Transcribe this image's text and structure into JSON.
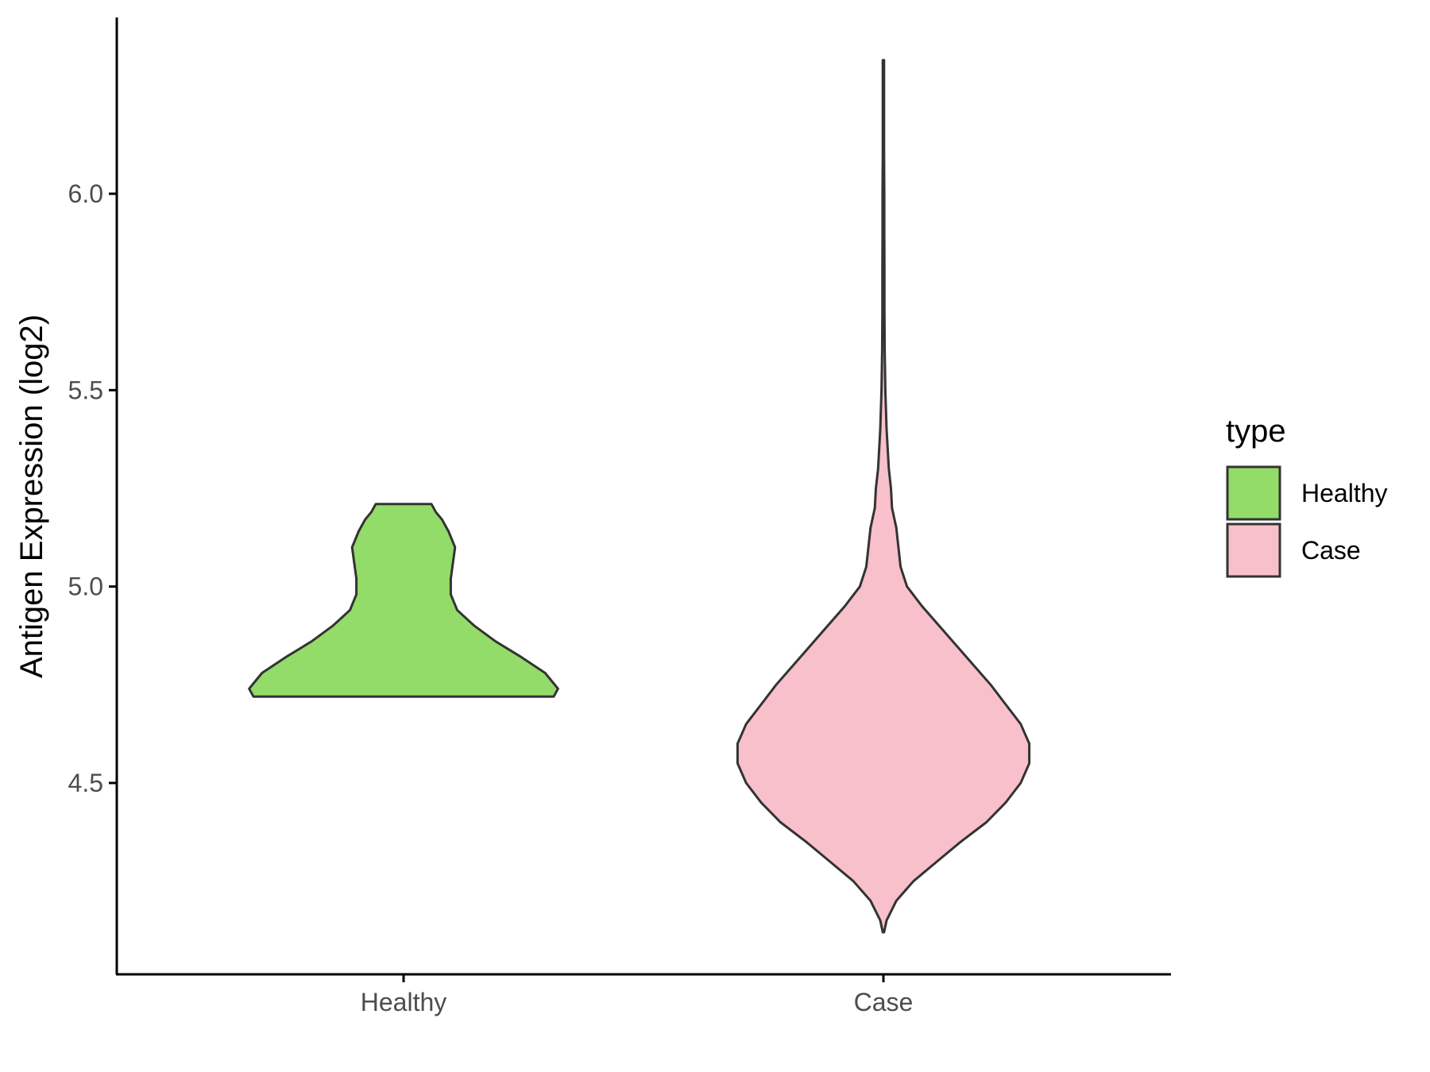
{
  "chart_data": {
    "type": "violin",
    "categories": [
      "Healthy",
      "Case"
    ],
    "ylabel": "Antigen Expression (log2)",
    "xlabel": "",
    "ylim": [
      4.0,
      6.45
    ],
    "yticks": [
      4.5,
      5.0,
      5.5,
      6.0
    ],
    "ytick_labels": [
      "4.5",
      "5.0",
      "5.5",
      "6.0"
    ],
    "legend": {
      "title": "type",
      "position": "right",
      "items": [
        {
          "label": "Healthy",
          "color": "#93dc69"
        },
        {
          "label": "Case",
          "color": "#f8c0cb"
        }
      ]
    },
    "series": [
      {
        "category": "Healthy",
        "color": "#93dc69",
        "min": 4.72,
        "max": 5.21,
        "density": [
          [
            4.72,
            0.7
          ],
          [
            4.74,
            0.72
          ],
          [
            4.78,
            0.66
          ],
          [
            4.82,
            0.55
          ],
          [
            4.86,
            0.43
          ],
          [
            4.9,
            0.33
          ],
          [
            4.94,
            0.25
          ],
          [
            4.98,
            0.22
          ],
          [
            5.02,
            0.22
          ],
          [
            5.06,
            0.23
          ],
          [
            5.1,
            0.24
          ],
          [
            5.14,
            0.21
          ],
          [
            5.17,
            0.18
          ],
          [
            5.19,
            0.15
          ],
          [
            5.21,
            0.13
          ]
        ]
      },
      {
        "category": "Case",
        "color": "#f8c0cb",
        "min": 4.12,
        "max": 6.34,
        "density": [
          [
            4.12,
            0.003
          ],
          [
            4.15,
            0.015
          ],
          [
            4.2,
            0.06
          ],
          [
            4.25,
            0.14
          ],
          [
            4.3,
            0.25
          ],
          [
            4.35,
            0.36
          ],
          [
            4.4,
            0.48
          ],
          [
            4.45,
            0.57
          ],
          [
            4.5,
            0.64
          ],
          [
            4.55,
            0.68
          ],
          [
            4.6,
            0.68
          ],
          [
            4.65,
            0.64
          ],
          [
            4.7,
            0.57
          ],
          [
            4.75,
            0.5
          ],
          [
            4.8,
            0.42
          ],
          [
            4.85,
            0.34
          ],
          [
            4.9,
            0.26
          ],
          [
            4.95,
            0.18
          ],
          [
            5.0,
            0.11
          ],
          [
            5.05,
            0.08
          ],
          [
            5.1,
            0.07
          ],
          [
            5.15,
            0.06
          ],
          [
            5.2,
            0.04
          ],
          [
            5.25,
            0.035
          ],
          [
            5.3,
            0.025
          ],
          [
            5.4,
            0.015
          ],
          [
            5.5,
            0.009
          ],
          [
            5.6,
            0.006
          ],
          [
            5.7,
            0.005
          ],
          [
            5.8,
            0.005
          ],
          [
            5.9,
            0.004
          ],
          [
            6.0,
            0.004
          ],
          [
            6.1,
            0.003
          ],
          [
            6.2,
            0.003
          ],
          [
            6.3,
            0.003
          ],
          [
            6.34,
            0.003
          ]
        ]
      }
    ]
  }
}
